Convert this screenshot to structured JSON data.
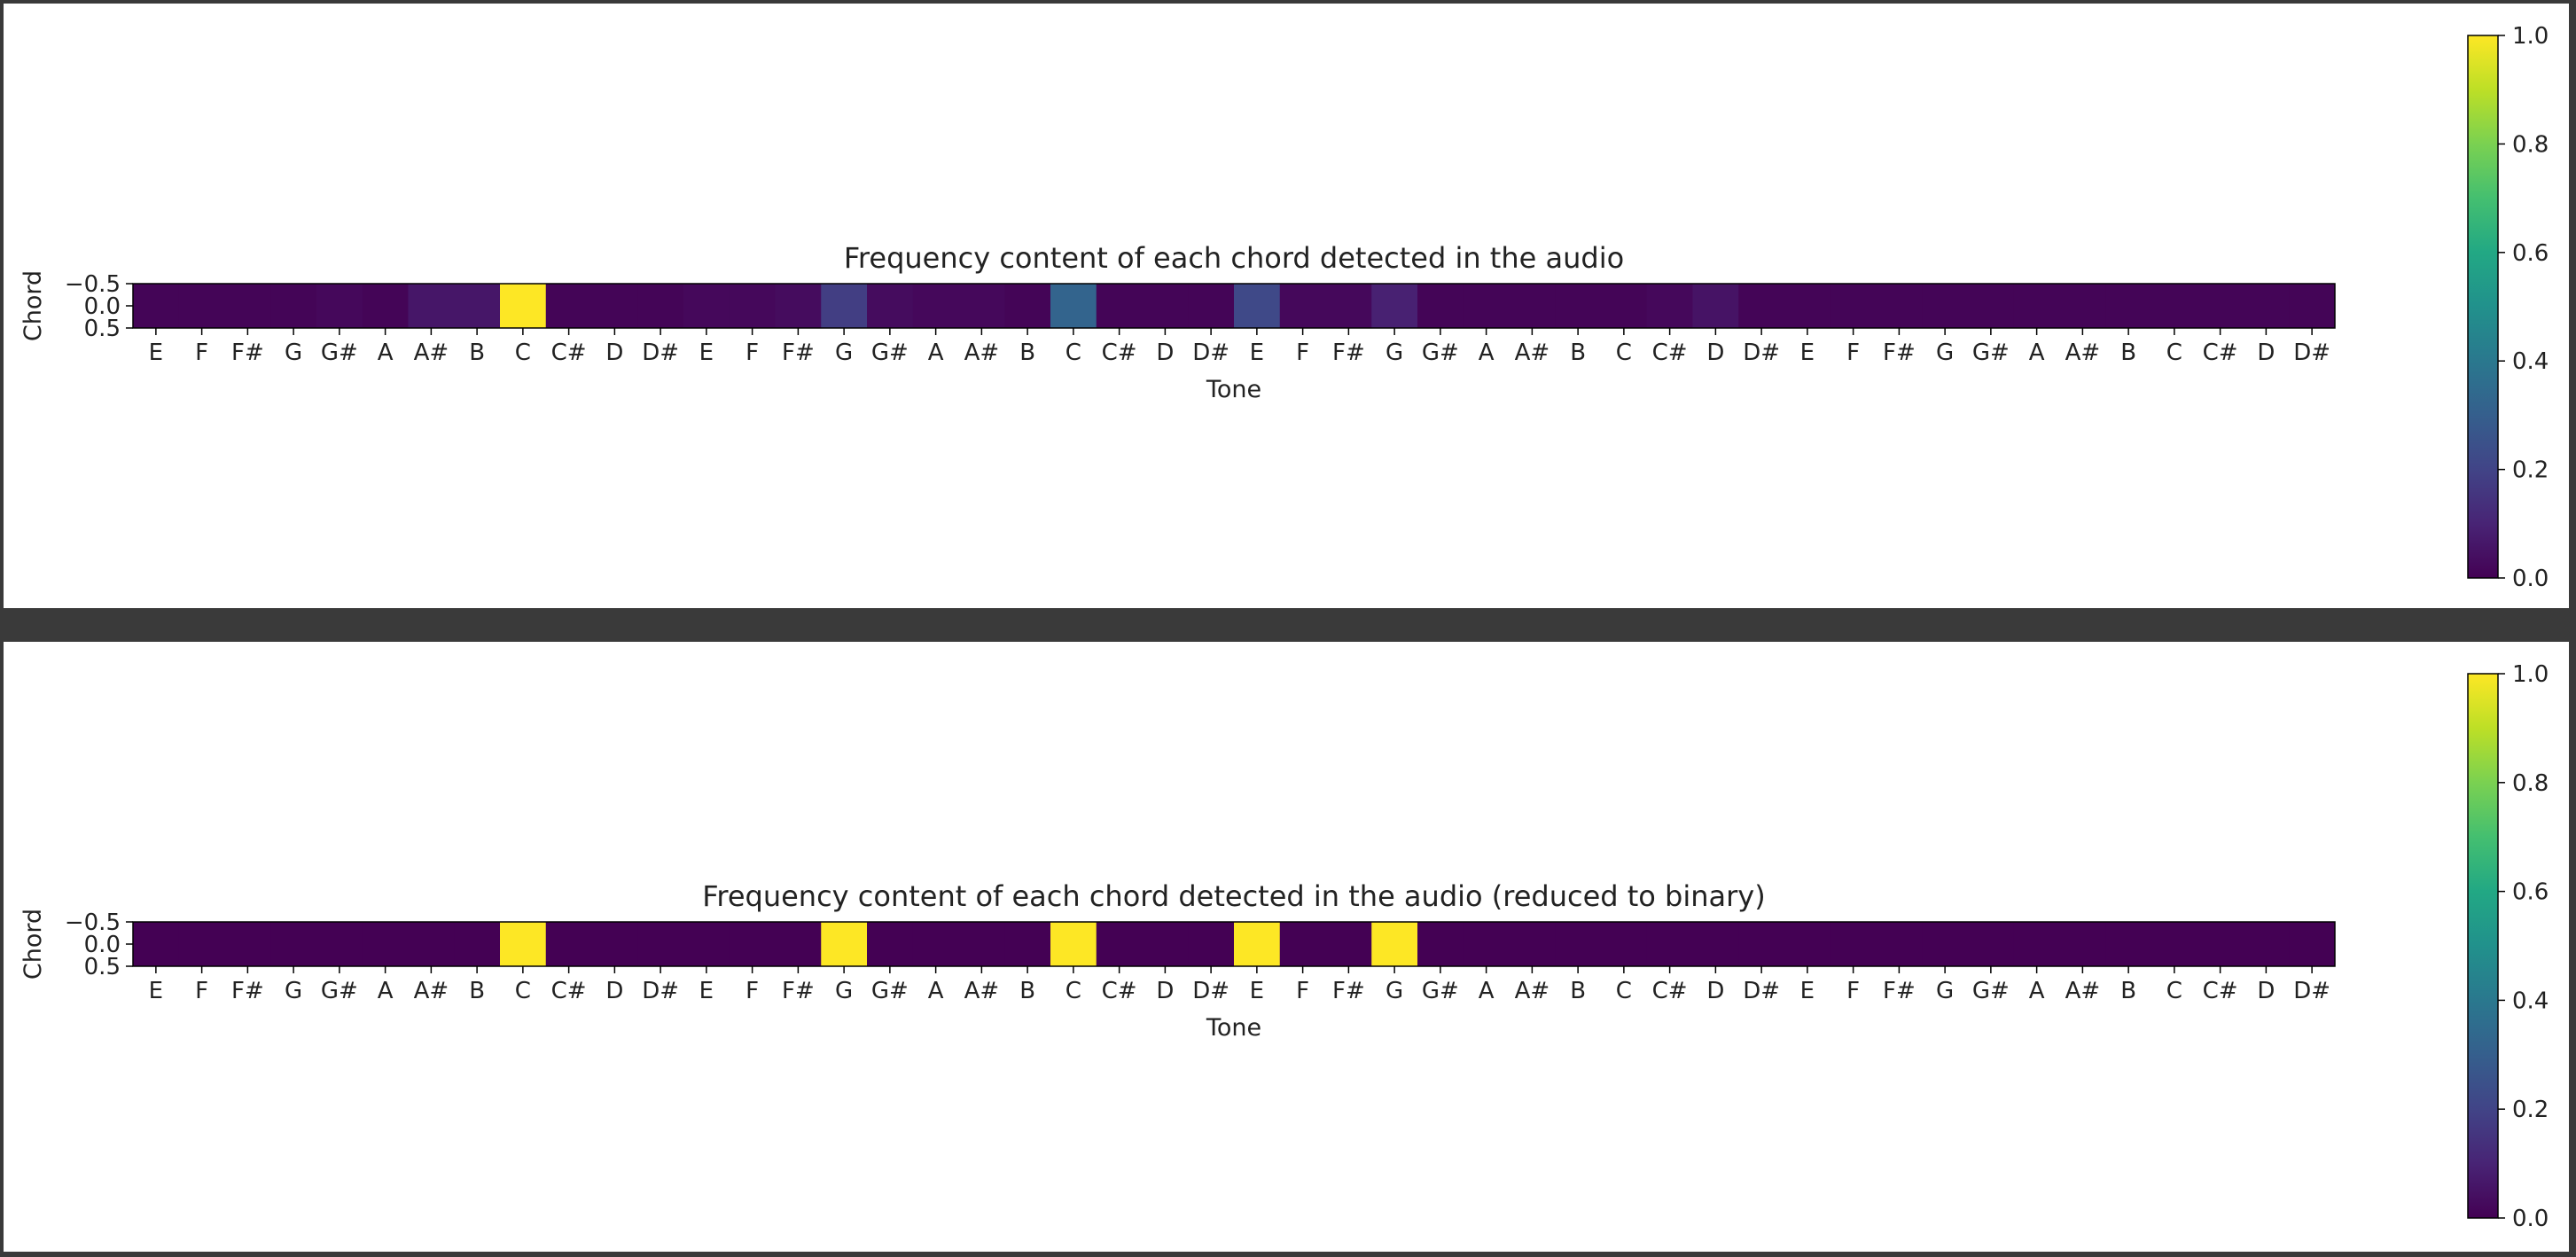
{
  "colormap": "viridis",
  "colors": {
    "low": "#440154",
    "high": "#fde725",
    "panel_bg": "#ffffff",
    "frame": "#3a3a3a"
  },
  "chart_data": [
    {
      "type": "heatmap",
      "title": "Frequency content of each chord detected in the audio",
      "xlabel": "Tone",
      "ylabel": "Chord",
      "x": [
        "E",
        "F",
        "F#",
        "G",
        "G#",
        "A",
        "A#",
        "B",
        "C",
        "C#",
        "D",
        "D#",
        "E",
        "F",
        "F#",
        "G",
        "G#",
        "A",
        "A#",
        "B",
        "C",
        "C#",
        "D",
        "D#",
        "E",
        "F",
        "F#",
        "G",
        "G#",
        "A",
        "A#",
        "B",
        "C",
        "C#",
        "D",
        "D#",
        "E",
        "F",
        "F#",
        "G",
        "G#",
        "A",
        "A#",
        "B",
        "C",
        "C#",
        "D",
        "D#"
      ],
      "yticks": [
        "−0.5",
        "0.0",
        "0.5"
      ],
      "values": [
        [
          0.01,
          0.01,
          0.01,
          0.01,
          0.02,
          0.01,
          0.06,
          0.06,
          1.0,
          0.01,
          0.01,
          0.01,
          0.02,
          0.02,
          0.03,
          0.18,
          0.03,
          0.02,
          0.02,
          0.01,
          0.32,
          0.01,
          0.01,
          0.01,
          0.22,
          0.02,
          0.02,
          0.09,
          0.01,
          0.01,
          0.01,
          0.01,
          0.01,
          0.02,
          0.05,
          0.01,
          0.01,
          0.01,
          0.01,
          0.01,
          0.01,
          0.01,
          0.01,
          0.01,
          0.01,
          0.01,
          0.01,
          0.01
        ]
      ],
      "colorbar": {
        "ticks": [
          "0.0",
          "0.2",
          "0.4",
          "0.6",
          "0.8",
          "1.0"
        ],
        "range": [
          0,
          1
        ]
      }
    },
    {
      "type": "heatmap",
      "title": "Frequency content of each chord detected in the audio (reduced to binary)",
      "xlabel": "Tone",
      "ylabel": "Chord",
      "x": [
        "E",
        "F",
        "F#",
        "G",
        "G#",
        "A",
        "A#",
        "B",
        "C",
        "C#",
        "D",
        "D#",
        "E",
        "F",
        "F#",
        "G",
        "G#",
        "A",
        "A#",
        "B",
        "C",
        "C#",
        "D",
        "D#",
        "E",
        "F",
        "F#",
        "G",
        "G#",
        "A",
        "A#",
        "B",
        "C",
        "C#",
        "D",
        "D#",
        "E",
        "F",
        "F#",
        "G",
        "G#",
        "A",
        "A#",
        "B",
        "C",
        "C#",
        "D",
        "D#"
      ],
      "yticks": [
        "−0.5",
        "0.0",
        "0.5"
      ],
      "values": [
        [
          0,
          0,
          0,
          0,
          0,
          0,
          0,
          0,
          1,
          0,
          0,
          0,
          0,
          0,
          0,
          1,
          0,
          0,
          0,
          0,
          1,
          0,
          0,
          0,
          1,
          0,
          0,
          1,
          0,
          0,
          0,
          0,
          0,
          0,
          0,
          0,
          0,
          0,
          0,
          0,
          0,
          0,
          0,
          0,
          0,
          0,
          0,
          0
        ]
      ],
      "colorbar": {
        "ticks": [
          "0.0",
          "0.2",
          "0.4",
          "0.6",
          "0.8",
          "1.0"
        ],
        "range": [
          0,
          1
        ]
      }
    }
  ]
}
